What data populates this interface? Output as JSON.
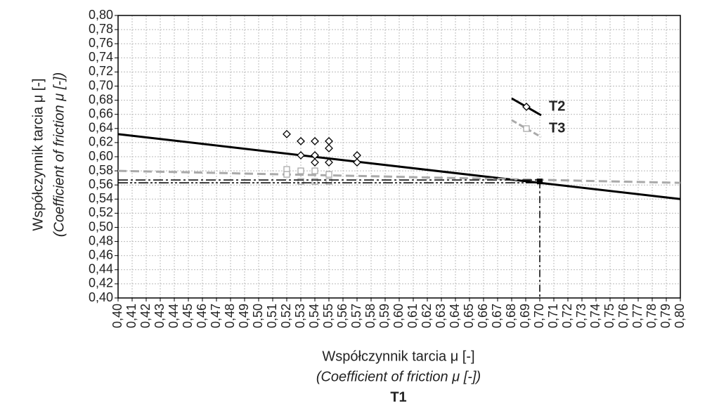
{
  "chart_data": {
    "type": "scatter",
    "xlabel": [
      "Współczynnik tarcia μ [-]",
      "(Coefficient of friction μ [-])",
      "T1"
    ],
    "ylabel": [
      "Współczynnik tarcia μ [-]",
      "(Coefficient of friction μ [-])"
    ],
    "xlim": [
      0.4,
      0.8
    ],
    "ylim": [
      0.4,
      0.8
    ],
    "xticks": [
      {
        "value": 0.4,
        "label": "0,40"
      },
      {
        "value": 0.41,
        "label": "0,41"
      },
      {
        "value": 0.42,
        "label": "0,42"
      },
      {
        "value": 0.43,
        "label": "0,43"
      },
      {
        "value": 0.44,
        "label": "0,44"
      },
      {
        "value": 0.45,
        "label": "0,45"
      },
      {
        "value": 0.46,
        "label": "0,46"
      },
      {
        "value": 0.47,
        "label": "0,47"
      },
      {
        "value": 0.48,
        "label": "0,48"
      },
      {
        "value": 0.49,
        "label": "0,49"
      },
      {
        "value": 0.5,
        "label": "0,50"
      },
      {
        "value": 0.51,
        "label": "0,51"
      },
      {
        "value": 0.52,
        "label": "0,52"
      },
      {
        "value": 0.53,
        "label": "0,53"
      },
      {
        "value": 0.54,
        "label": "0,54"
      },
      {
        "value": 0.55,
        "label": "0,55"
      },
      {
        "value": 0.56,
        "label": "0,56"
      },
      {
        "value": 0.57,
        "label": "0,57"
      },
      {
        "value": 0.58,
        "label": "0,58"
      },
      {
        "value": 0.59,
        "label": "0,59"
      },
      {
        "value": 0.6,
        "label": "0,60"
      },
      {
        "value": 0.61,
        "label": "0,61"
      },
      {
        "value": 0.62,
        "label": "0,62"
      },
      {
        "value": 0.63,
        "label": "0,63"
      },
      {
        "value": 0.64,
        "label": "0,64"
      },
      {
        "value": 0.65,
        "label": "0,65"
      },
      {
        "value": 0.66,
        "label": "0,66"
      },
      {
        "value": 0.67,
        "label": "0,67"
      },
      {
        "value": 0.68,
        "label": "0,68"
      },
      {
        "value": 0.69,
        "label": "0,69"
      },
      {
        "value": 0.7,
        "label": "0,70"
      },
      {
        "value": 0.71,
        "label": "0,71"
      },
      {
        "value": 0.72,
        "label": "0,72"
      },
      {
        "value": 0.73,
        "label": "0,73"
      },
      {
        "value": 0.74,
        "label": "0,74"
      },
      {
        "value": 0.75,
        "label": "0,75"
      },
      {
        "value": 0.76,
        "label": "0,76"
      },
      {
        "value": 0.77,
        "label": "0,77"
      },
      {
        "value": 0.78,
        "label": "0,78"
      },
      {
        "value": 0.79,
        "label": "0,79"
      },
      {
        "value": 0.8,
        "label": "0,80"
      }
    ],
    "yticks": [
      {
        "value": 0.4,
        "label": "0,40"
      },
      {
        "value": 0.42,
        "label": "0,42"
      },
      {
        "value": 0.44,
        "label": "0,44"
      },
      {
        "value": 0.46,
        "label": "0,46"
      },
      {
        "value": 0.48,
        "label": "0,48"
      },
      {
        "value": 0.5,
        "label": "0,50"
      },
      {
        "value": 0.52,
        "label": "0,52"
      },
      {
        "value": 0.54,
        "label": "0,54"
      },
      {
        "value": 0.56,
        "label": "0,56"
      },
      {
        "value": 0.58,
        "label": "0,58"
      },
      {
        "value": 0.6,
        "label": "0,60"
      },
      {
        "value": 0.62,
        "label": "0,62"
      },
      {
        "value": 0.64,
        "label": "0,64"
      },
      {
        "value": 0.66,
        "label": "0,66"
      },
      {
        "value": 0.68,
        "label": "0,68"
      },
      {
        "value": 0.7,
        "label": "0,70"
      },
      {
        "value": 0.72,
        "label": "0,72"
      },
      {
        "value": 0.74,
        "label": "0,74"
      },
      {
        "value": 0.76,
        "label": "0,76"
      },
      {
        "value": 0.78,
        "label": "0,78"
      },
      {
        "value": 0.8,
        "label": "0,80"
      }
    ],
    "grid": true,
    "legend": "upper right",
    "series": [
      {
        "name": "T2",
        "color": "#000000",
        "marker": "diamond",
        "x": [
          0.52,
          0.53,
          0.54,
          0.55,
          0.55,
          0.53,
          0.54,
          0.54,
          0.55,
          0.57,
          0.57
        ],
        "values": [
          0.632,
          0.622,
          0.622,
          0.622,
          0.612,
          0.602,
          0.602,
          0.592,
          0.592,
          0.602,
          0.592
        ],
        "fit": {
          "x": [
            0.4,
            0.8
          ],
          "values": [
            0.632,
            0.54
          ],
          "dash": "solid"
        }
      },
      {
        "name": "T3",
        "color": "#aaaaaa",
        "marker": "square",
        "x": [
          0.52,
          0.52,
          0.53,
          0.54,
          0.53,
          0.54,
          0.55,
          0.55
        ],
        "values": [
          0.582,
          0.575,
          0.58,
          0.58,
          0.565,
          0.565,
          0.565,
          0.575
        ],
        "fit": {
          "x": [
            0.4,
            0.8
          ],
          "values": [
            0.58,
            0.563
          ],
          "dash": "dashed"
        }
      }
    ],
    "reference": {
      "x": 0.7,
      "y_values": [
        0.567,
        0.563
      ],
      "point": [
        0.7,
        0.565
      ]
    }
  }
}
